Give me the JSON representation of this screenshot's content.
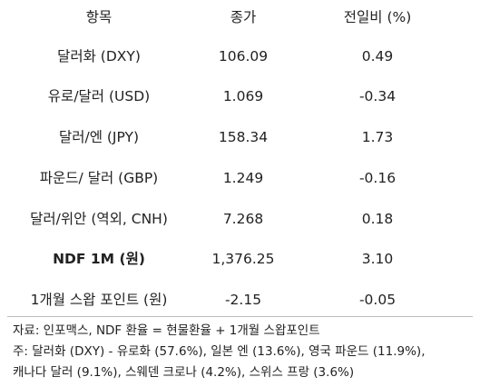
{
  "table": {
    "headers": [
      "항목",
      "종가",
      "전일비 (%)"
    ],
    "rows": [
      [
        "달러화 (DXY)",
        "106.09",
        "0.49"
      ],
      [
        "유로/달러 (USD)",
        "1.069",
        "-0.34"
      ],
      [
        "달러/엔 (JPY)",
        "158.34",
        "1.73"
      ],
      [
        "파운드/ 달러 (GBP)",
        "1.249",
        "-0.16"
      ],
      [
        "달러/위안 (역외, CNH)",
        "7.268",
        "0.18"
      ],
      [
        "NDF 1M (원)",
        "1,376.25",
        "3.10"
      ],
      [
        "1개월 스왑 포인트 (원)",
        "-2.15",
        "-0.05"
      ]
    ]
  },
  "notes": {
    "source": "자료: 인포맥스, NDF 환율 = 현물환율 + 1개월 스왑포인트",
    "note_line1": "주: 달러화 (DXY) - 유로화 (57.6%), 일본 엔 (13.6%), 영국 파운드 (11.9%),",
    "note_line2": "캐나다 달러 (9.1%), 스웨덴 크로나 (4.2%), 스위스 프랑 (3.6%)"
  }
}
